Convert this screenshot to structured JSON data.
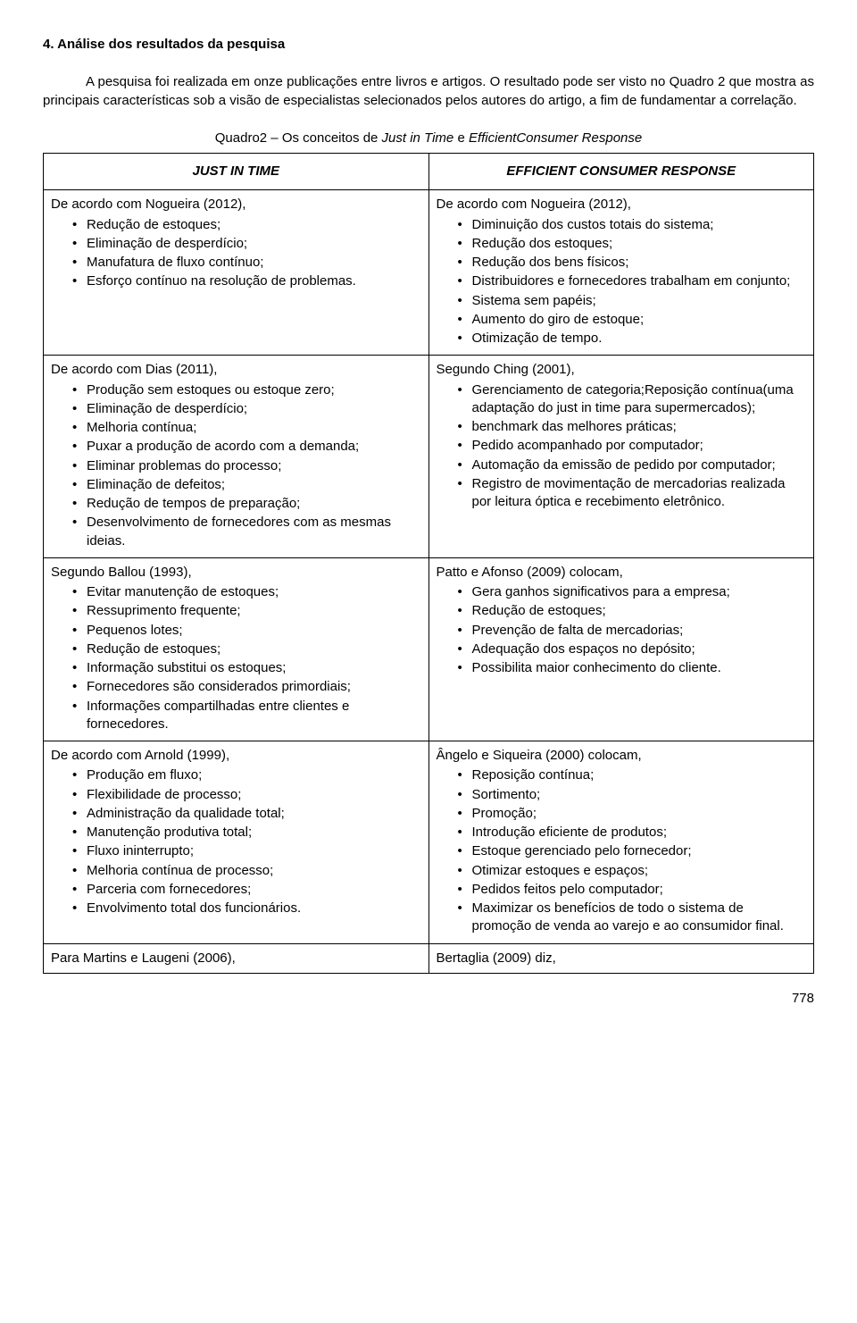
{
  "heading": "4. Análise dos resultados da pesquisa",
  "paragraph": "A pesquisa foi realizada em onze publicações entre livros e artigos. O resultado pode ser visto no Quadro 2  que mostra as principais características sob a visão de especialistas selecionados pelos autores do artigo, a fim de fundamentar a correlação.",
  "caption_prefix": "Quadro2 – Os conceitos de ",
  "caption_it1": "Just in Time",
  "caption_mid": " e ",
  "caption_it2": "EfficientConsumer Response",
  "col_left_header": "JUST IN TIME",
  "col_right_header": "EFFICIENT CONSUMER RESPONSE",
  "rows": [
    {
      "left": {
        "lead": "De acordo com Nogueira (2012),",
        "items": [
          "Redução de estoques;",
          "Eliminação de desperdício;",
          "Manufatura de fluxo contínuo;",
          "Esforço contínuo na resolução de problemas."
        ]
      },
      "right": {
        "lead": "De acordo com Nogueira (2012),",
        "items": [
          "Diminuição dos custos totais do sistema;",
          "Redução dos estoques;",
          "Redução dos bens físicos;",
          "Distribuidores e fornecedores trabalham em conjunto;",
          "Sistema sem papéis;",
          "Aumento do giro de estoque;",
          "Otimização de tempo."
        ]
      }
    },
    {
      "left": {
        "lead": "De acordo com Dias (2011),",
        "items": [
          "Produção sem estoques ou estoque zero;",
          "Eliminação de desperdício;",
          "Melhoria contínua;",
          "Puxar a produção de acordo com a demanda;",
          "Eliminar problemas do processo;",
          "Eliminação de defeitos;",
          "Redução de tempos de preparação;",
          "Desenvolvimento de fornecedores com as mesmas ideias."
        ]
      },
      "right": {
        "lead": "Segundo Ching (2001),",
        "items": [
          "Gerenciamento de categoria;Reposição contínua(uma adaptação do just in time para supermercados);",
          "benchmark das melhores práticas;",
          "Pedido acompanhado por computador;",
          "Automação da emissão de pedido por computador;",
          "Registro de movimentação de mercadorias realizada por leitura óptica e recebimento eletrônico."
        ]
      }
    },
    {
      "left": {
        "lead": "Segundo Ballou (1993),",
        "items": [
          "Evitar manutenção de estoques;",
          "Ressuprimento frequente;",
          "Pequenos lotes;",
          "Redução de estoques;",
          "Informação substitui os estoques;",
          "Fornecedores    são considerados primordiais;",
          "Informações compartilhadas entre clientes e fornecedores."
        ]
      },
      "right": {
        "lead": "Patto e Afonso (2009) colocam,",
        "items": [
          "Gera ganhos significativos para a empresa;",
          "Redução de estoques;",
          "Prevenção de falta de mercadorias;",
          "Adequação dos espaços no depósito;",
          "Possibilita maior conhecimento do cliente."
        ]
      }
    },
    {
      "left": {
        "lead": "De acordo com Arnold (1999),",
        "items": [
          "Produção em fluxo;",
          "Flexibilidade de processo;",
          "Administração da qualidade total;",
          "Manutenção produtiva total;",
          "Fluxo ininterrupto;",
          "Melhoria contínua de processo;",
          "Parceria com fornecedores;",
          "Envolvimento total dos funcionários."
        ]
      },
      "right": {
        "lead": "Ângelo e Siqueira (2000) colocam,",
        "items": [
          "Reposição contínua;",
          "Sortimento;",
          "Promoção;",
          "Introdução eficiente de produtos;",
          "Estoque gerenciado pelo fornecedor;",
          "Otimizar estoques e espaços;",
          "Pedidos feitos pelo computador;",
          "Maximizar os benefícios de todo o sistema de promoção de venda ao varejo e ao consumidor final."
        ]
      }
    },
    {
      "left": {
        "lead": "Para Martins e Laugeni (2006),",
        "items": []
      },
      "right": {
        "lead": "Bertaglia (2009) diz,",
        "items": []
      }
    }
  ],
  "page_number": "778"
}
